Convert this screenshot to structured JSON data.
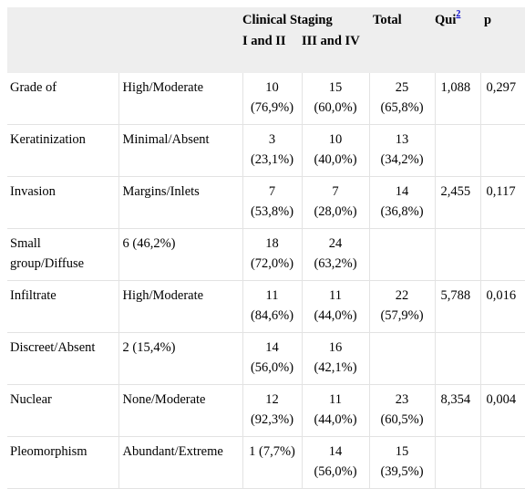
{
  "header": {
    "clinical_staging": "Clinical Staging",
    "total": "Total",
    "qui": "Qui",
    "qui_sup": "2",
    "p": "p",
    "stage_1": "I and II",
    "stage_2": "III and IV"
  },
  "rows": [
    {
      "label": "Grade of",
      "sub": "High/Moderate",
      "s1": [
        "10",
        "(76,9%)"
      ],
      "s2": [
        "15",
        "(60,0%)"
      ],
      "total": [
        "25",
        "(65,8%)"
      ],
      "qui": "1,088",
      "p": "0,297"
    },
    {
      "label": "Keratinization",
      "sub": "Minimal/Absent",
      "s1": [
        "3",
        "(23,1%)"
      ],
      "s2": [
        "10",
        "(40,0%)"
      ],
      "total": [
        "13",
        "(34,2%)"
      ],
      "qui": "",
      "p": ""
    },
    {
      "label": "Invasion",
      "sub": "Margins/Inlets",
      "s1": [
        "7",
        "(53,8%)"
      ],
      "s2": [
        "7",
        "(28,0%)"
      ],
      "total": [
        "14",
        "(36,8%)"
      ],
      "qui": "2,455",
      "p": "0,117"
    },
    {
      "label": "Small group/Diffuse",
      "sub": "6 (46,2%)",
      "s1": [
        "18",
        "(72,0%)"
      ],
      "s2": [
        "24",
        "(63,2%)"
      ],
      "total": [
        "",
        ""
      ],
      "qui": "",
      "p": ""
    },
    {
      "label": "Infiltrate",
      "sub": "High/Moderate",
      "s1": [
        "11",
        "(84,6%)"
      ],
      "s2": [
        "11",
        "(44,0%)"
      ],
      "total": [
        "22",
        "(57,9%)"
      ],
      "qui": "5,788",
      "p": "0,016"
    },
    {
      "label": "Discreet/Absent",
      "sub": "2 (15,4%)",
      "s1": [
        "14",
        "(56,0%)"
      ],
      "s2": [
        "16",
        "(42,1%)"
      ],
      "total": [
        "",
        ""
      ],
      "qui": "",
      "p": ""
    },
    {
      "label": "Nuclear",
      "sub": "None/Moderate",
      "s1": [
        "12",
        "(92,3%)"
      ],
      "s2": [
        "11",
        "(44,0%)"
      ],
      "total": [
        "23",
        "(60,5%)"
      ],
      "qui": "8,354",
      "p": "0,004"
    },
    {
      "label": "Pleomorphism",
      "sub": "Abundant/Extreme",
      "s1": [
        "1 (7,7%)",
        ""
      ],
      "s2": [
        "14",
        "(56,0%)"
      ],
      "total": [
        "15",
        "(39,5%)"
      ],
      "qui": "",
      "p": ""
    }
  ]
}
